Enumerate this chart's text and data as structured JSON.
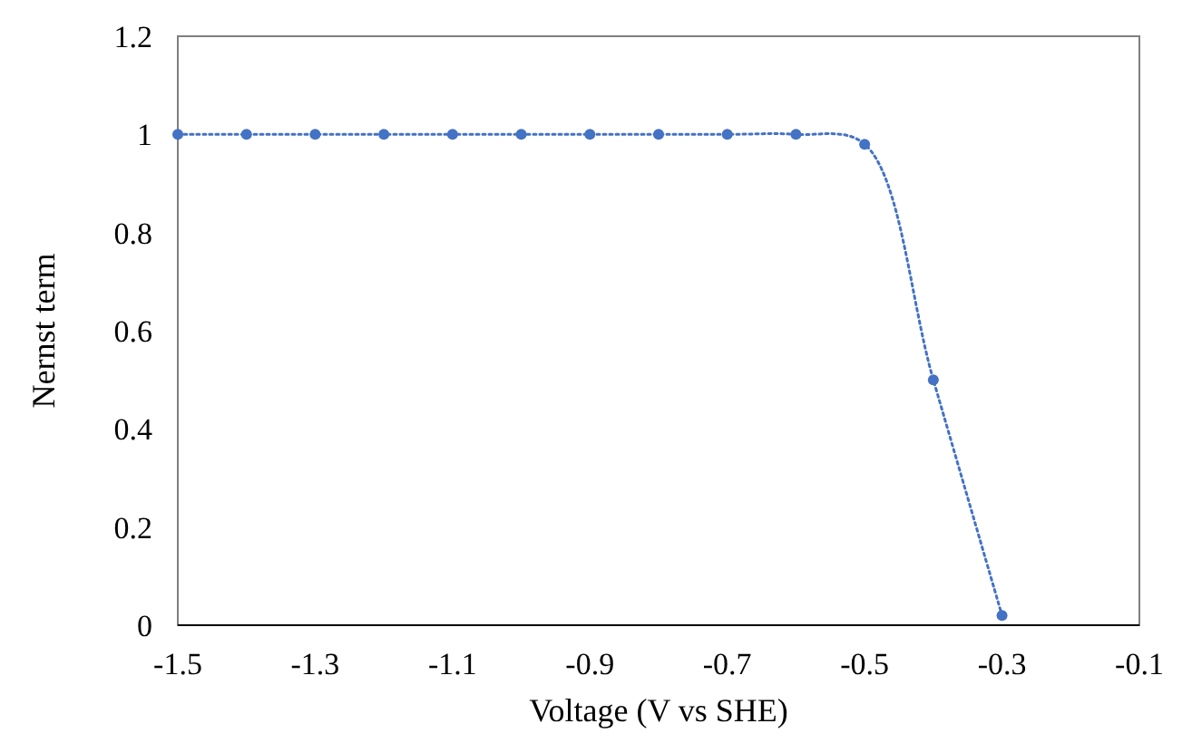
{
  "chart_data": {
    "type": "line",
    "xlabel": "Voltage (V vs SHE)",
    "ylabel": "Nernst term",
    "x": [
      -1.5,
      -1.4,
      -1.3,
      -1.2,
      -1.1,
      -1.0,
      -0.9,
      -0.8,
      -0.7,
      -0.6,
      -0.5,
      -0.4,
      -0.3
    ],
    "series": [
      {
        "color": "#4472c4",
        "values": [
          1,
          1,
          1,
          1,
          1,
          1,
          1,
          1,
          1,
          1,
          0.98,
          0.5,
          0.02
        ]
      }
    ],
    "xlim": [
      -1.5,
      -0.1
    ],
    "xticks": [
      -1.5,
      -1.3,
      -1.1,
      -0.9,
      -0.7,
      -0.5,
      -0.3,
      -0.1
    ],
    "ylim": [
      0,
      1.2
    ],
    "yticks": [
      0,
      0.2,
      0.4,
      0.6,
      0.8,
      1,
      1.2
    ],
    "grid": false,
    "marker": "circle",
    "line_style": "dotted"
  }
}
